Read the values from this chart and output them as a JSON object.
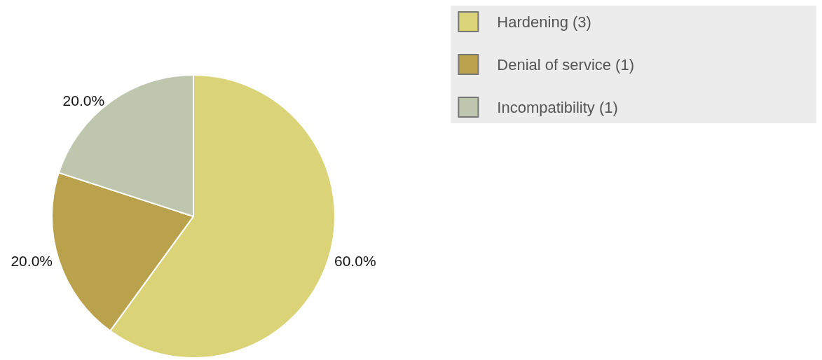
{
  "chart_data": {
    "type": "pie",
    "categories": [
      "Hardening (3)",
      "Denial of service (1)",
      "Incompatibility (1)"
    ],
    "values": [
      60,
      20,
      20
    ],
    "colors": [
      "#dad377",
      "#b9a24b",
      "#bfc6ae"
    ],
    "value_labels": [
      "60.0%",
      "20.0%",
      "20.0%"
    ],
    "legend": "top right"
  }
}
